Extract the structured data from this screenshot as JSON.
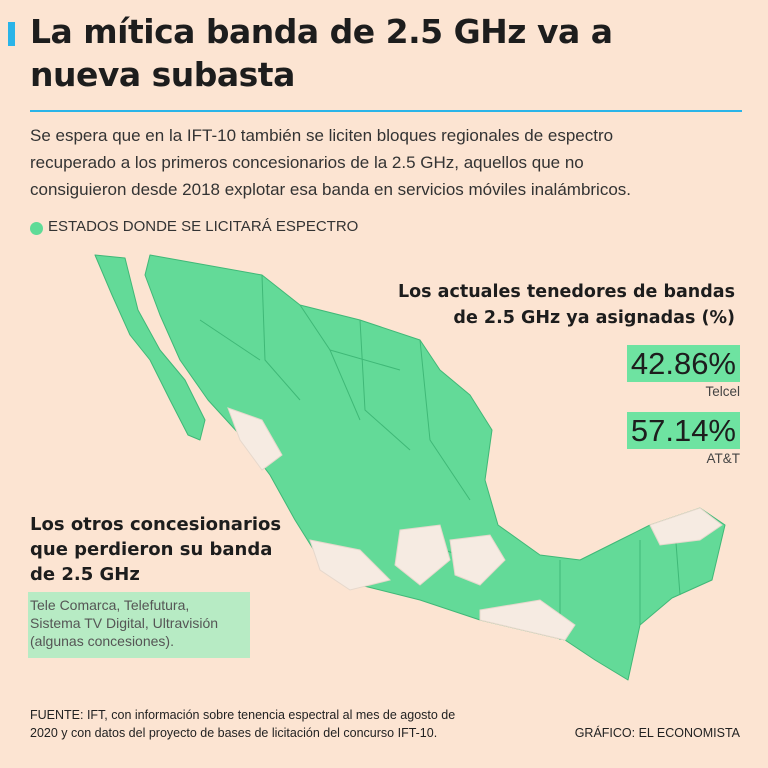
{
  "header": {
    "title_lines": [
      "La mítica banda de 2.5 GHz va a",
      "nueva subasta"
    ],
    "description_lines": [
      "Se espera que en la IFT-10 también se liciten bloques regionales de espectro",
      "recuperado a los primeros concesionarios de la 2.5 GHz, aquellos que no",
      "consiguieron desde 2018 explotar esa banda en servicios móviles inalámbricos."
    ]
  },
  "legend": {
    "label": "ESTADOS DONDE SE LICITARÁ ESPECTRO"
  },
  "holders": {
    "title_lines": [
      "Los actuales tenedores de bandas",
      "de 2.5 GHz ya asignadas (%)"
    ],
    "items": [
      {
        "value": "42.86%",
        "name": "Telcel"
      },
      {
        "value": "57.14%",
        "name": "AT&T"
      }
    ]
  },
  "others": {
    "title_lines": [
      "Los otros concesionarios",
      "que perdieron su banda",
      "de 2.5 GHz"
    ],
    "text_lines": [
      "Tele Comarca, Telefutura,",
      "Sistema TV Digital, Ultravisión",
      "(algunas concesiones)."
    ]
  },
  "footer": {
    "source_lines": [
      "FUENTE: IFT, con información sobre tenencia espectral al mes de agosto de",
      "2020 y con datos del proyecto de bases de licitación del concurso IFT-10."
    ],
    "credit": "GRÁFICO: EL ECONOMISTA"
  }
}
